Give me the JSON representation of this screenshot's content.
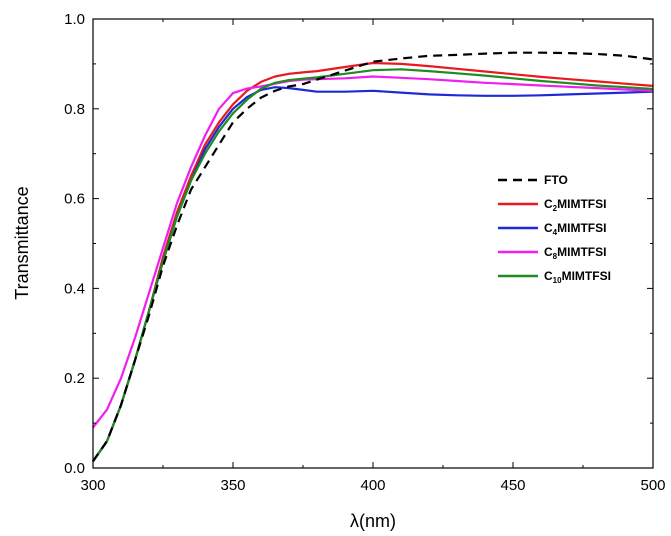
{
  "chart_data": {
    "type": "line",
    "xlabel": "λ(nm)",
    "ylabel": "Transmittance",
    "xlim": [
      300,
      500
    ],
    "ylim": [
      0.0,
      1.0
    ],
    "xticks": [
      "300",
      "350",
      "400",
      "450",
      "500"
    ],
    "yticks": [
      "0.0",
      "0.2",
      "0.4",
      "0.6",
      "0.8",
      "1.0"
    ],
    "grid": false,
    "legend_position": "right",
    "series": [
      {
        "name": "FTO",
        "legend_main": "FTO",
        "legend_sub": "",
        "legend_tail": "",
        "color": "#000000",
        "dash": "dashed",
        "x": [
          300,
          305,
          310,
          315,
          320,
          325,
          330,
          335,
          340,
          345,
          350,
          355,
          360,
          365,
          370,
          375,
          380,
          390,
          400,
          410,
          420,
          430,
          440,
          450,
          460,
          470,
          480,
          490,
          500
        ],
        "y": [
          0.015,
          0.06,
          0.14,
          0.24,
          0.34,
          0.45,
          0.54,
          0.62,
          0.67,
          0.72,
          0.77,
          0.8,
          0.825,
          0.84,
          0.85,
          0.855,
          0.865,
          0.885,
          0.905,
          0.912,
          0.918,
          0.92,
          0.923,
          0.925,
          0.925,
          0.924,
          0.922,
          0.918,
          0.91
        ]
      },
      {
        "name": "C2MIMTFSI",
        "legend_main": "C",
        "legend_sub": "2",
        "legend_tail": "MIMTFSI",
        "color": "#e8191f",
        "dash": "solid",
        "x": [
          300,
          305,
          310,
          315,
          320,
          325,
          330,
          335,
          340,
          345,
          350,
          355,
          360,
          365,
          370,
          375,
          380,
          390,
          400,
          410,
          420,
          430,
          440,
          450,
          460,
          470,
          480,
          490,
          500
        ],
        "y": [
          0.015,
          0.06,
          0.14,
          0.24,
          0.35,
          0.47,
          0.57,
          0.65,
          0.72,
          0.77,
          0.81,
          0.84,
          0.86,
          0.872,
          0.878,
          0.881,
          0.884,
          0.893,
          0.902,
          0.9,
          0.895,
          0.889,
          0.883,
          0.877,
          0.871,
          0.866,
          0.861,
          0.856,
          0.851
        ]
      },
      {
        "name": "C4MIMTFSI",
        "legend_main": "C",
        "legend_sub": "4",
        "legend_tail": "MIMTFSI",
        "color": "#1f29d6",
        "dash": "solid",
        "x": [
          300,
          305,
          310,
          315,
          320,
          325,
          330,
          335,
          340,
          345,
          350,
          355,
          360,
          365,
          370,
          375,
          380,
          390,
          400,
          410,
          420,
          430,
          440,
          450,
          460,
          470,
          480,
          490,
          500
        ],
        "y": [
          0.015,
          0.06,
          0.14,
          0.24,
          0.35,
          0.46,
          0.56,
          0.64,
          0.71,
          0.76,
          0.8,
          0.826,
          0.842,
          0.848,
          0.846,
          0.842,
          0.838,
          0.838,
          0.84,
          0.836,
          0.832,
          0.83,
          0.829,
          0.829,
          0.83,
          0.832,
          0.834,
          0.836,
          0.838
        ]
      },
      {
        "name": "C8MIMTFSI",
        "legend_main": "C",
        "legend_sub": "8",
        "legend_tail": "MIMTFSI",
        "color": "#f01ef0",
        "dash": "solid",
        "x": [
          300,
          305,
          310,
          315,
          320,
          325,
          330,
          335,
          340,
          345,
          350,
          355,
          360,
          365,
          370,
          375,
          380,
          390,
          400,
          410,
          420,
          430,
          440,
          450,
          460,
          470,
          480,
          490,
          500
        ],
        "y": [
          0.09,
          0.13,
          0.2,
          0.29,
          0.39,
          0.49,
          0.59,
          0.67,
          0.74,
          0.8,
          0.835,
          0.845,
          0.85,
          0.856,
          0.862,
          0.865,
          0.866,
          0.868,
          0.872,
          0.869,
          0.866,
          0.862,
          0.858,
          0.855,
          0.852,
          0.849,
          0.846,
          0.843,
          0.84
        ]
      },
      {
        "name": "C10MIMTFSI",
        "legend_main": "C",
        "legend_sub": "10",
        "legend_tail": "MIMTFSI",
        "color": "#1e8c1e",
        "dash": "solid",
        "x": [
          300,
          305,
          310,
          315,
          320,
          325,
          330,
          335,
          340,
          345,
          350,
          355,
          360,
          365,
          370,
          375,
          380,
          390,
          400,
          410,
          420,
          430,
          440,
          450,
          460,
          470,
          480,
          490,
          500
        ],
        "y": [
          0.015,
          0.06,
          0.14,
          0.24,
          0.35,
          0.46,
          0.56,
          0.64,
          0.7,
          0.75,
          0.79,
          0.82,
          0.845,
          0.858,
          0.864,
          0.867,
          0.87,
          0.878,
          0.886,
          0.888,
          0.884,
          0.879,
          0.874,
          0.868,
          0.862,
          0.857,
          0.852,
          0.848,
          0.844
        ]
      }
    ]
  }
}
